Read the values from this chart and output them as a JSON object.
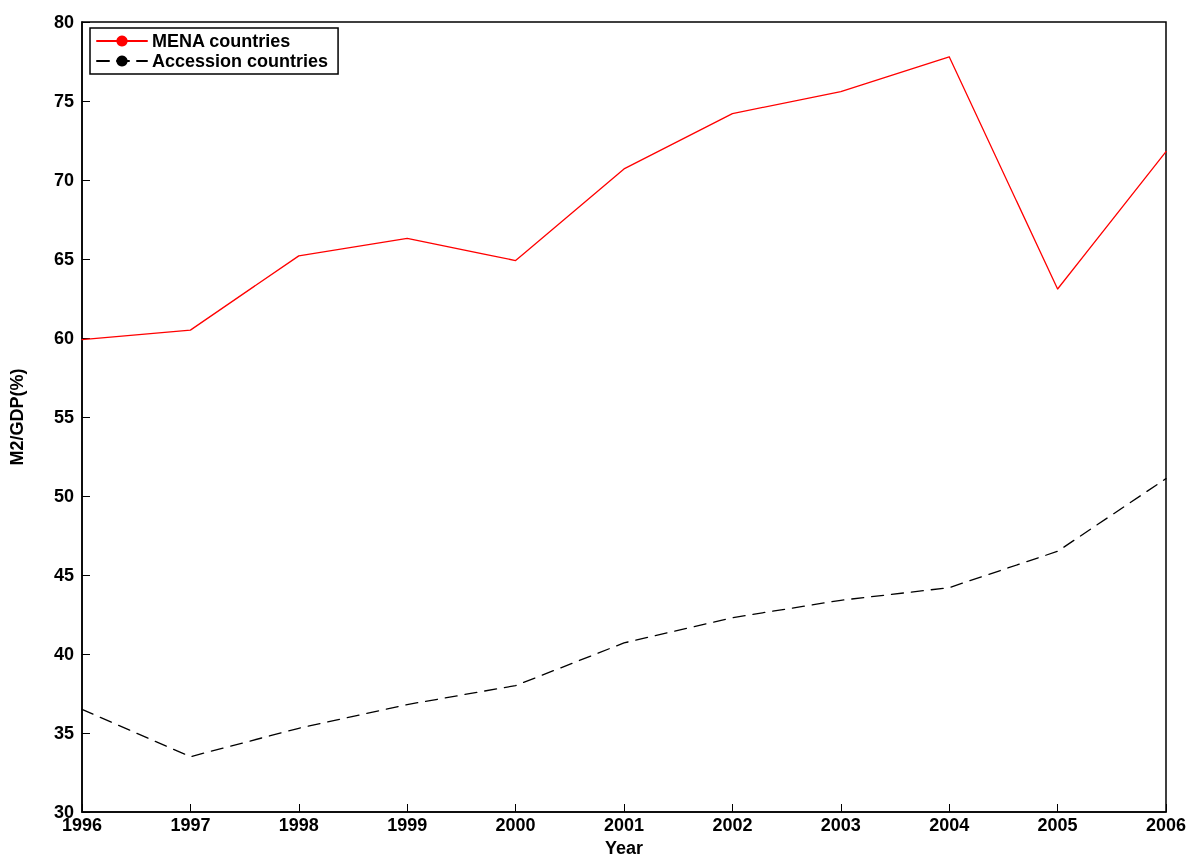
{
  "chart_data": {
    "type": "line",
    "xlabel": "Year",
    "ylabel": "M2/GDP(%)",
    "x": [
      1996,
      1997,
      1998,
      1999,
      2000,
      2001,
      2002,
      2003,
      2004,
      2005,
      2006
    ],
    "series": [
      {
        "name": "MENA countries",
        "color": "#ff0000",
        "line_style": "solid",
        "values": [
          59.9,
          60.5,
          65.2,
          66.3,
          64.9,
          70.7,
          74.2,
          75.6,
          77.8,
          63.1,
          71.8
        ]
      },
      {
        "name": "Accession countries",
        "color": "#000000",
        "line_style": "dashed",
        "values": [
          36.5,
          33.5,
          35.3,
          36.8,
          38.0,
          40.7,
          42.3,
          43.4,
          44.2,
          46.5,
          51.1
        ]
      }
    ],
    "xlim": [
      1996,
      2006
    ],
    "xticks": [
      1996,
      1997,
      1998,
      1999,
      2000,
      2001,
      2002,
      2003,
      2004,
      2005,
      2006
    ],
    "ylim": [
      30,
      80
    ],
    "yticks": [
      30,
      35,
      40,
      45,
      50,
      55,
      60,
      65,
      70,
      75,
      80
    ],
    "grid": false,
    "legend": "top left",
    "marker": "none"
  }
}
